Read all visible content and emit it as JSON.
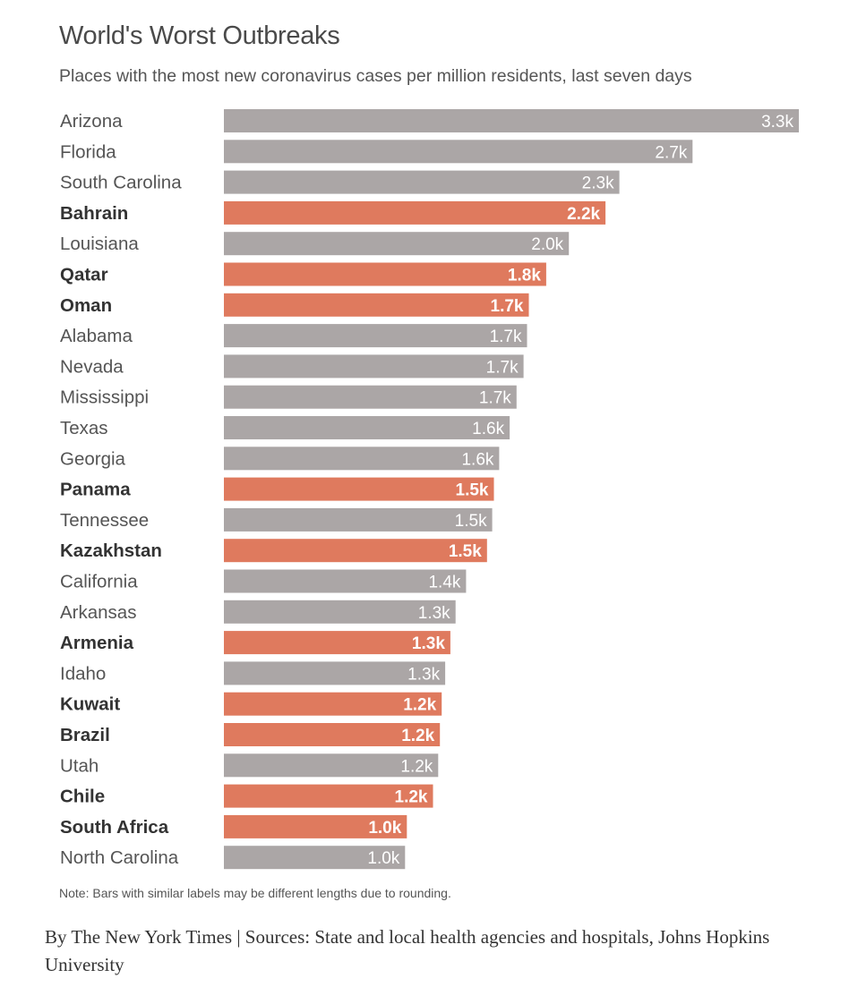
{
  "chart_data": {
    "type": "bar",
    "orientation": "horizontal",
    "title": "World's Worst Outbreaks",
    "subtitle": "Places with the most new coronavirus cases per million residents, last seven days",
    "note": "Note: Bars with similar labels may be different lengths due to rounding.",
    "source": "By The New York Times | Sources: State and local health agencies and hospitals, Johns Hopkins University",
    "xlim": [
      0,
      3300
    ],
    "grid": false,
    "colors": {
      "us_state": "#aba6a6",
      "country": "#df7a5e"
    },
    "categories": [
      "Arizona",
      "Florida",
      "South Carolina",
      "Bahrain",
      "Louisiana",
      "Qatar",
      "Oman",
      "Alabama",
      "Nevada",
      "Mississippi",
      "Texas",
      "Georgia",
      "Panama",
      "Tennessee",
      "Kazakhstan",
      "California",
      "Arkansas",
      "Armenia",
      "Idaho",
      "Kuwait",
      "Brazil",
      "Utah",
      "Chile",
      "South Africa",
      "North Carolina"
    ],
    "values": [
      3300,
      2690,
      2270,
      2190,
      1980,
      1850,
      1750,
      1740,
      1720,
      1680,
      1640,
      1580,
      1550,
      1540,
      1510,
      1390,
      1330,
      1300,
      1270,
      1250,
      1240,
      1230,
      1200,
      1050,
      1040
    ],
    "labels": [
      "3.3k",
      "2.7k",
      "2.3k",
      "2.2k",
      "2.0k",
      "1.8k",
      "1.7k",
      "1.7k",
      "1.7k",
      "1.7k",
      "1.6k",
      "1.6k",
      "1.5k",
      "1.5k",
      "1.5k",
      "1.4k",
      "1.3k",
      "1.3k",
      "1.3k",
      "1.2k",
      "1.2k",
      "1.2k",
      "1.2k",
      "1.0k",
      "1.0k"
    ],
    "highlighted": [
      false,
      false,
      false,
      true,
      false,
      true,
      true,
      false,
      false,
      false,
      false,
      false,
      true,
      false,
      true,
      false,
      false,
      true,
      false,
      true,
      true,
      false,
      true,
      true,
      false
    ]
  }
}
